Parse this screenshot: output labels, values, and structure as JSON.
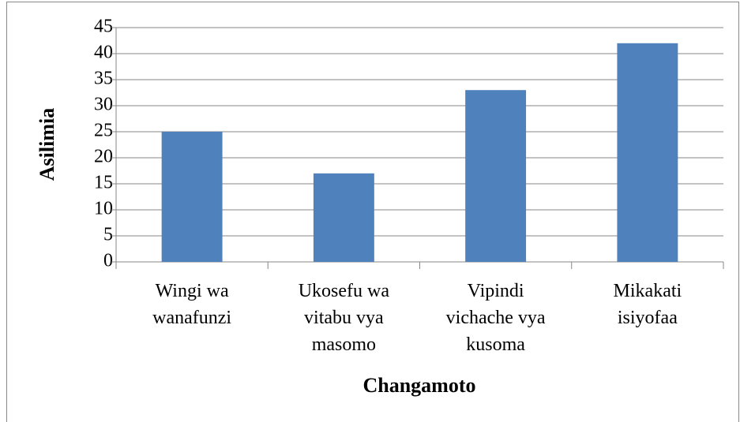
{
  "chart_data": {
    "type": "bar",
    "categories": [
      "Wingi wa wanafunzi",
      "Ukosefu wa vitabu vya masomo",
      "Vipindi vichache vya kusoma",
      "Mikakati isiyofaa"
    ],
    "values": [
      25,
      17,
      33,
      42
    ],
    "color": "#4f81bd",
    "x_label": "Changamoto",
    "y_label": "Asilimia",
    "ylim": [
      0,
      45
    ],
    "yticks": [
      0,
      5,
      10,
      15,
      20,
      25,
      30,
      35,
      40,
      45
    ],
    "grid": true
  }
}
